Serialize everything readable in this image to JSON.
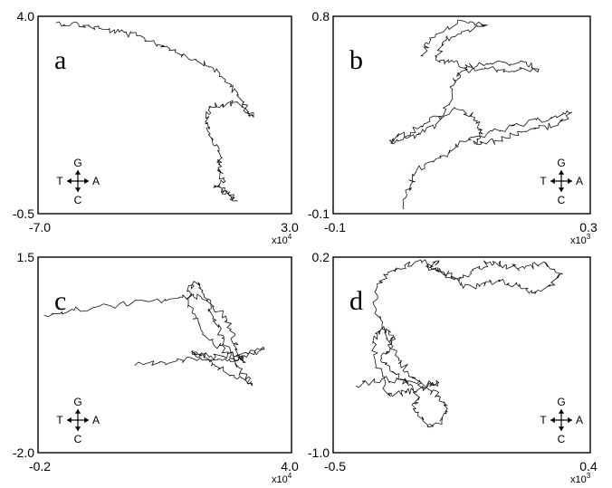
{
  "chart_data": [
    {
      "type": "line",
      "panel_label": "a",
      "xlim": [
        -7.0,
        3.0
      ],
      "ylim": [
        -0.5,
        4.0
      ],
      "x_ticks": [
        "-7.0",
        "3.0"
      ],
      "y_ticks": [
        "4.0",
        "-0.5"
      ],
      "x_multiplier": "x10",
      "x_multiplier_exp": "4",
      "compass": {
        "up": "G",
        "down": "C",
        "left": "T",
        "right": "A"
      },
      "compass_position": "bottom-left",
      "series": [
        {
          "points": [
            [
              -6.3,
              3.85
            ],
            [
              -5.4,
              3.82
            ],
            [
              -4.6,
              3.72
            ],
            [
              -3.8,
              3.64
            ],
            [
              -3.1,
              3.55
            ],
            [
              -2.4,
              3.4
            ],
            [
              -1.6,
              3.22
            ],
            [
              -0.8,
              3.02
            ],
            [
              -0.2,
              2.85
            ],
            [
              0.4,
              2.55
            ],
            [
              0.9,
              2.2
            ],
            [
              1.3,
              1.82
            ],
            [
              1.5,
              1.7
            ],
            [
              0.9,
              2.02
            ],
            [
              0.3,
              2.0
            ],
            [
              -0.2,
              1.95
            ],
            [
              -0.4,
              1.55
            ],
            [
              -0.1,
              1.2
            ],
            [
              0.2,
              0.8
            ],
            [
              0.1,
              0.55
            ],
            [
              0.3,
              0.3
            ],
            [
              0.0,
              0.1
            ],
            [
              0.35,
              0.02
            ],
            [
              0.6,
              -0.1
            ],
            [
              0.8,
              -0.2
            ]
          ]
        }
      ]
    },
    {
      "type": "line",
      "panel_label": "b",
      "xlim": [
        -0.1,
        0.3
      ],
      "ylim": [
        -0.1,
        0.8
      ],
      "x_ticks": [
        "-0.1",
        "0.3"
      ],
      "y_ticks": [
        "0.8",
        "-0.1"
      ],
      "x_multiplier": "x10",
      "x_multiplier_exp": "3",
      "compass": {
        "up": "G",
        "down": "C",
        "left": "T",
        "right": "A"
      },
      "compass_position": "bottom-right",
      "series": [
        {
          "points": [
            [
              0.01,
              -0.08
            ],
            [
              0.02,
              0.03
            ],
            [
              0.03,
              0.1
            ],
            [
              0.06,
              0.15
            ],
            [
              0.09,
              0.2
            ],
            [
              0.12,
              0.25
            ],
            [
              0.16,
              0.28
            ],
            [
              0.2,
              0.31
            ],
            [
              0.24,
              0.34
            ],
            [
              0.27,
              0.36
            ],
            [
              0.25,
              0.31
            ],
            [
              0.22,
              0.29
            ],
            [
              0.18,
              0.26
            ],
            [
              0.15,
              0.23
            ],
            [
              0.12,
              0.22
            ],
            [
              0.13,
              0.28
            ],
            [
              0.12,
              0.34
            ],
            [
              0.09,
              0.38
            ],
            [
              0.05,
              0.32
            ],
            [
              0.02,
              0.27
            ],
            [
              0.0,
              0.25
            ],
            [
              -0.01,
              0.22
            ],
            [
              0.03,
              0.26
            ],
            [
              0.06,
              0.3
            ],
            [
              0.08,
              0.4
            ],
            [
              0.09,
              0.5
            ],
            [
              0.1,
              0.55
            ],
            [
              0.14,
              0.56
            ],
            [
              0.18,
              0.55
            ],
            [
              0.22,
              0.56
            ],
            [
              0.19,
              0.59
            ],
            [
              0.14,
              0.58
            ],
            [
              0.11,
              0.57
            ],
            [
              0.08,
              0.59
            ],
            [
              0.06,
              0.6
            ],
            [
              0.07,
              0.68
            ],
            [
              0.1,
              0.73
            ],
            [
              0.14,
              0.76
            ],
            [
              0.1,
              0.78
            ],
            [
              0.05,
              0.7
            ],
            [
              0.04,
              0.62
            ]
          ]
        }
      ]
    },
    {
      "type": "line",
      "panel_label": "c",
      "xlim": [
        -0.2,
        4.0
      ],
      "ylim": [
        -2.0,
        1.5
      ],
      "x_ticks": [
        "-0.2",
        "4.0"
      ],
      "y_ticks": [
        "1.5",
        "-2.0"
      ],
      "x_multiplier": "x10",
      "x_multiplier_exp": "4",
      "compass": {
        "up": "G",
        "down": "C",
        "left": "T",
        "right": "A"
      },
      "compass_position": "bottom-left",
      "series": [
        {
          "points": [
            [
              -0.1,
              0.46
            ],
            [
              0.4,
              0.55
            ],
            [
              1.0,
              0.63
            ],
            [
              1.6,
              0.71
            ],
            [
              2.2,
              0.78
            ],
            [
              2.5,
              0.79
            ],
            [
              2.8,
              0.53
            ],
            [
              3.0,
              0.21
            ],
            [
              3.1,
              -0.16
            ],
            [
              3.2,
              -0.39
            ],
            [
              2.95,
              -0.2
            ],
            [
              2.7,
              -0.05
            ],
            [
              2.5,
              0.2
            ],
            [
              2.35,
              0.5
            ],
            [
              2.3,
              0.9
            ],
            [
              2.45,
              1.05
            ],
            [
              2.6,
              0.75
            ],
            [
              2.7,
              0.4
            ],
            [
              2.85,
              0.05
            ],
            [
              3.0,
              -0.25
            ],
            [
              3.15,
              -0.55
            ],
            [
              3.35,
              -0.8
            ],
            [
              3.05,
              -0.65
            ],
            [
              2.75,
              -0.45
            ],
            [
              2.55,
              -0.3
            ],
            [
              2.35,
              -0.2
            ],
            [
              2.55,
              -0.25
            ],
            [
              2.85,
              -0.35
            ],
            [
              3.2,
              -0.3
            ],
            [
              3.55,
              -0.15
            ],
            [
              3.25,
              -0.22
            ],
            [
              2.85,
              -0.28
            ],
            [
              2.4,
              -0.33
            ],
            [
              1.9,
              -0.39
            ],
            [
              1.4,
              -0.44
            ]
          ]
        }
      ]
    },
    {
      "type": "line",
      "panel_label": "d",
      "xlim": [
        -0.5,
        0.4
      ],
      "ylim": [
        -1.0,
        0.2
      ],
      "x_ticks": [
        "-0.5",
        "0.4"
      ],
      "y_ticks": [
        "0.2",
        "-1.0"
      ],
      "x_multiplier": "x10",
      "x_multiplier_exp": "3",
      "compass": {
        "up": "G",
        "down": "C",
        "left": "T",
        "right": "A"
      },
      "compass_position": "bottom-right",
      "series": [
        {
          "points": [
            [
              -0.42,
              -0.59
            ],
            [
              -0.33,
              -0.55
            ],
            [
              -0.24,
              -0.56
            ],
            [
              -0.17,
              -0.58
            ],
            [
              -0.13,
              -0.57
            ],
            [
              -0.2,
              -0.61
            ],
            [
              -0.26,
              -0.64
            ],
            [
              -0.31,
              -0.64
            ],
            [
              -0.35,
              -0.46
            ],
            [
              -0.36,
              -0.32
            ],
            [
              -0.33,
              -0.24
            ],
            [
              -0.29,
              -0.28
            ],
            [
              -0.3,
              -0.36
            ],
            [
              -0.33,
              -0.42
            ],
            [
              -0.28,
              -0.52
            ],
            [
              -0.23,
              -0.58
            ],
            [
              -0.2,
              -0.66
            ],
            [
              -0.22,
              -0.73
            ],
            [
              -0.17,
              -0.83
            ],
            [
              -0.12,
              -0.81
            ],
            [
              -0.1,
              -0.73
            ],
            [
              -0.13,
              -0.65
            ],
            [
              -0.18,
              -0.6
            ],
            [
              -0.24,
              -0.5
            ],
            [
              -0.27,
              -0.42
            ],
            [
              -0.32,
              -0.26
            ],
            [
              -0.35,
              -0.13
            ],
            [
              -0.35,
              0.0
            ],
            [
              -0.31,
              0.09
            ],
            [
              -0.25,
              0.15
            ],
            [
              -0.19,
              0.17
            ],
            [
              -0.14,
              0.13
            ],
            [
              -0.1,
              0.1
            ],
            [
              -0.06,
              0.07
            ],
            [
              -0.01,
              0.12
            ],
            [
              0.05,
              0.17
            ],
            [
              0.1,
              0.15
            ],
            [
              0.17,
              0.13
            ],
            [
              0.24,
              0.17
            ],
            [
              0.3,
              0.1
            ],
            [
              0.26,
              0.03
            ],
            [
              0.2,
              -0.02
            ],
            [
              0.15,
              0.02
            ],
            [
              0.08,
              0.05
            ],
            [
              0.01,
              0.02
            ],
            [
              -0.05,
              0.03
            ],
            [
              -0.11,
              0.1
            ],
            [
              -0.17,
              0.14
            ],
            [
              -0.13,
              0.17
            ]
          ]
        }
      ]
    }
  ]
}
